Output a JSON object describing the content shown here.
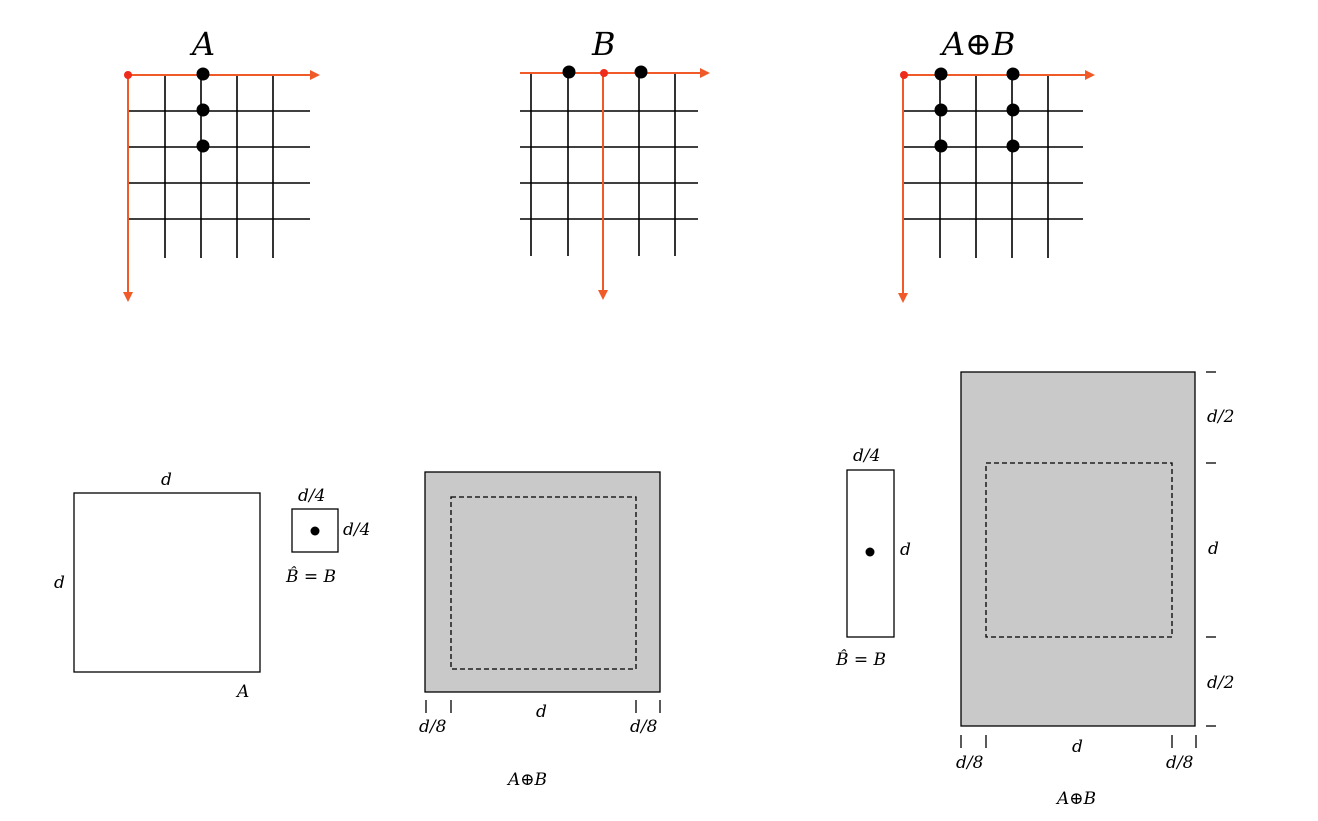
{
  "top_panels": {
    "a_title": "A",
    "b_title": "B",
    "sum_title": "A⊕B"
  },
  "bottom_left": {
    "a_top_label": "d",
    "a_side_label": "d",
    "a_corner_label": "A",
    "b_top_label": "d/4",
    "b_side_label": "d/4",
    "b_caption": "B̂ = B",
    "sum_left_label": "d/8",
    "sum_mid_label": "d",
    "sum_right_label": "d/8",
    "sum_caption": "A⊕B"
  },
  "bottom_right": {
    "b_top_label": "d/4",
    "b_side_label": "d",
    "b_caption": "B̂ = B",
    "top_right_label": "d/2",
    "mid_right_label": "d",
    "bottom_right_label": "d/2",
    "left_label": "d/8",
    "mid_label": "d",
    "right_label": "d/8",
    "sum_caption": "A⊕B"
  },
  "colors": {
    "axis": "#ef5a28",
    "fill": "#c9c9c9"
  }
}
